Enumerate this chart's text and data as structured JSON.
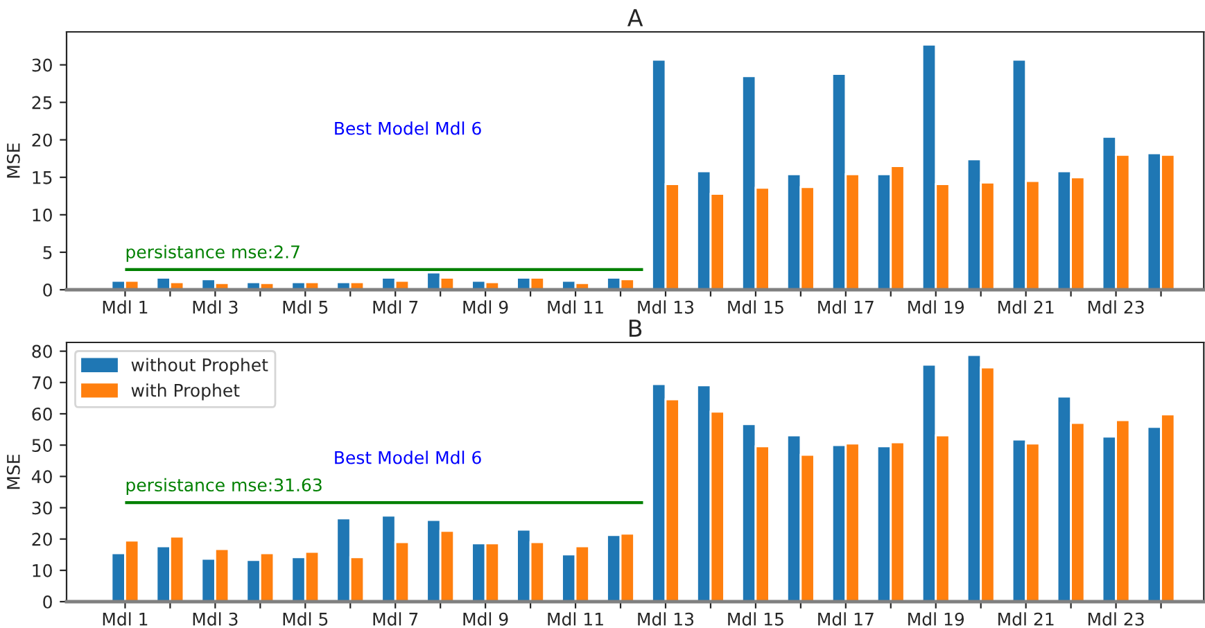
{
  "chart_data": [
    {
      "type": "bar",
      "title": "A",
      "ylabel": "MSE",
      "categories": [
        "Mdl 1",
        null,
        "Mdl 3",
        null,
        "Mdl 5",
        null,
        "Mdl 7",
        null,
        "Mdl 9",
        null,
        "Mdl 11",
        null,
        "Mdl 13",
        null,
        "Mdl 15",
        null,
        "Mdl 17",
        null,
        "Mdl 19",
        null,
        "Mdl 21",
        null,
        "Mdl 23",
        null
      ],
      "series": [
        {
          "color": "#1f77b4",
          "values": [
            1.2,
            1.6,
            1.4,
            1.0,
            1.0,
            1.0,
            1.6,
            2.3,
            1.2,
            1.6,
            1.2,
            1.6,
            30.7,
            15.8,
            28.5,
            15.4,
            28.8,
            15.4,
            32.7,
            17.4,
            30.7,
            15.8,
            20.4,
            18.2
          ]
        },
        {
          "color": "#ff7f0e",
          "values": [
            1.2,
            1.0,
            0.9,
            0.9,
            1.0,
            1.0,
            1.2,
            1.6,
            1.0,
            1.6,
            0.9,
            1.4,
            14.1,
            12.8,
            13.6,
            13.7,
            15.4,
            16.5,
            14.1,
            14.3,
            14.5,
            15.0,
            18.0,
            18.0
          ]
        }
      ],
      "ylim": [
        0,
        34.4
      ],
      "yticks": [
        0,
        5,
        10,
        15,
        20,
        25,
        30
      ],
      "ref_lines": [
        {
          "axis": "y",
          "value": 2.7,
          "label": "persistance mse:2.7",
          "color": "#008000"
        }
      ],
      "annotations": [
        "Best Model Mdl 6"
      ],
      "grid": false,
      "legend": false
    },
    {
      "type": "bar",
      "title": "B",
      "ylabel": "MSE",
      "categories": [
        "Mdl 1",
        null,
        "Mdl 3",
        null,
        "Mdl 5",
        null,
        "Mdl 7",
        null,
        "Mdl 9",
        null,
        "Mdl 11",
        null,
        "Mdl 13",
        null,
        "Mdl 15",
        null,
        "Mdl 17",
        null,
        "Mdl 19",
        null,
        "Mdl 21",
        null,
        "Mdl 23",
        null
      ],
      "series": [
        {
          "name": "without Prophet",
          "color": "#1f77b4",
          "values": [
            15.5,
            17.7,
            13.7,
            13.3,
            14.2,
            26.6,
            27.5,
            26.1,
            18.6,
            23.0,
            15.1,
            21.3,
            69.5,
            69.1,
            56.7,
            53.1,
            50.0,
            49.6,
            75.7,
            78.8,
            51.8,
            65.5,
            52.7,
            55.8
          ]
        },
        {
          "name": "with Prophet",
          "color": "#ff7f0e",
          "values": [
            19.5,
            20.8,
            16.8,
            15.5,
            15.9,
            14.2,
            19.0,
            22.6,
            18.6,
            19.0,
            17.7,
            21.7,
            64.6,
            60.7,
            49.6,
            46.9,
            50.5,
            50.9,
            53.1,
            74.8,
            50.5,
            57.1,
            58.0,
            59.8
          ]
        }
      ],
      "ylim": [
        0,
        82.8
      ],
      "yticks": [
        0,
        10,
        20,
        30,
        40,
        50,
        60,
        70,
        80
      ],
      "ref_lines": [
        {
          "axis": "y",
          "value": 31.63,
          "label": "persistance mse:31.63",
          "color": "#008000"
        }
      ],
      "annotations": [
        "Best Model Mdl 6"
      ],
      "grid": false,
      "legend": "top left"
    }
  ]
}
